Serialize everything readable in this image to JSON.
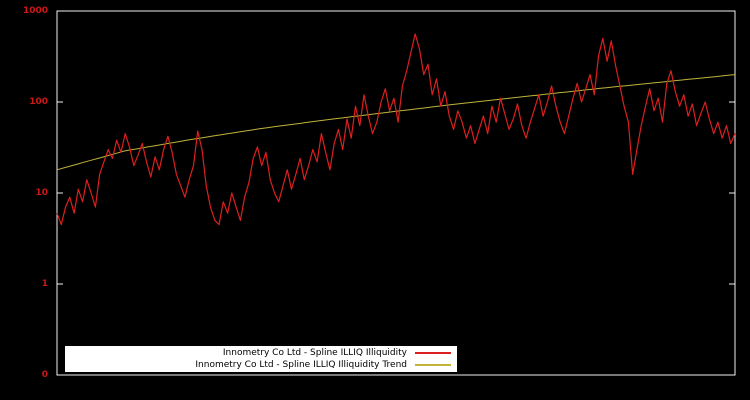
{
  "colors": {
    "background": "#000000",
    "series": "#dc1f1f",
    "trend": "#bfb33a",
    "tick_label": "#d01616",
    "frame": "#f0f0f0",
    "legend_background": "#ffffff",
    "legend_text": "#000000"
  },
  "y_axis": {
    "scale": "log",
    "range": [
      0.1,
      1000
    ],
    "tick_labels": [
      "1000",
      "100",
      "10",
      "1",
      "0"
    ]
  },
  "x_axis": {
    "tick_labels": []
  },
  "legend": {
    "items": [
      {
        "label": "Innometry Co Ltd - Spline ILLIQ Illiquidity",
        "series_key": "series"
      },
      {
        "label": "Innometry Co Ltd - Spline ILLIQ Illiquidity Trend",
        "series_key": "trend"
      }
    ]
  },
  "chart_data": {
    "type": "line",
    "title": "",
    "xlabel": "",
    "ylabel": "",
    "yscale": "log",
    "ylim": [
      0.1,
      1000
    ],
    "grid": false,
    "legend_position": "bottom-center",
    "series": [
      {
        "name": "Innometry Co Ltd - Spline ILLIQ Illiquidity",
        "color": "#dc1f1f",
        "values": [
          6,
          4.5,
          7,
          9,
          6,
          11,
          8,
          14,
          10,
          7,
          16,
          22,
          30,
          24,
          38,
          28,
          45,
          32,
          20,
          26,
          35,
          22,
          15,
          25,
          18,
          30,
          42,
          28,
          16,
          12,
          9,
          14,
          20,
          48,
          30,
          12,
          7,
          5,
          4.5,
          8,
          6,
          10,
          7,
          5,
          9,
          13,
          24,
          32,
          20,
          28,
          14,
          10,
          8,
          12,
          18,
          11,
          16,
          24,
          14,
          20,
          30,
          22,
          45,
          28,
          18,
          35,
          50,
          30,
          65,
          40,
          90,
          55,
          120,
          70,
          45,
          60,
          100,
          140,
          80,
          110,
          60,
          150,
          220,
          350,
          560,
          380,
          200,
          260,
          120,
          180,
          90,
          130,
          70,
          50,
          80,
          60,
          40,
          55,
          35,
          50,
          70,
          45,
          90,
          60,
          110,
          75,
          50,
          65,
          95,
          55,
          40,
          60,
          85,
          120,
          70,
          100,
          150,
          90,
          60,
          45,
          70,
          110,
          160,
          100,
          140,
          200,
          120,
          320,
          500,
          280,
          470,
          250,
          150,
          90,
          60,
          16,
          30,
          55,
          90,
          140,
          80,
          110,
          60,
          160,
          220,
          130,
          90,
          120,
          70,
          95,
          55,
          75,
          100,
          65,
          45,
          60,
          40,
          55,
          35,
          45
        ]
      },
      {
        "name": "Innometry Co Ltd - Spline ILLIQ Illiquidity Trend",
        "color": "#bfb33a",
        "keypoints_t": [
          0,
          0.1,
          0.2,
          0.3,
          0.4,
          0.5,
          0.6,
          0.7,
          0.8,
          0.9,
          1.0
        ],
        "values": [
          18,
          29,
          39,
          51,
          64,
          79,
          97,
          117,
          141,
          168,
          200
        ]
      }
    ]
  }
}
